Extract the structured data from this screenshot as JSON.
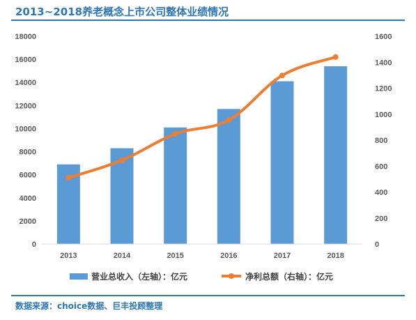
{
  "title": "2013~2018养老概念上市公司整体业绩情况",
  "source": "数据来源：choice数据、巨丰投顾整理",
  "colors": {
    "bar": "#5b9bd5",
    "line": "#ed7d31",
    "accent": "#2e75b6",
    "axis": "#595959"
  },
  "chart_data": {
    "type": "bar",
    "categories": [
      "2013",
      "2014",
      "2015",
      "2016",
      "2017",
      "2018"
    ],
    "series": [
      {
        "name": "营业总收入（左轴）：亿元",
        "type": "bar",
        "axis": "left",
        "values": [
          6900,
          8300,
          10100,
          11700,
          14100,
          15400
        ]
      },
      {
        "name": "净利总额（右轴）：亿元",
        "type": "line",
        "axis": "right",
        "values": [
          510,
          645,
          848,
          955,
          1298,
          1440
        ]
      }
    ],
    "y_left": {
      "ylim": [
        0,
        18000
      ],
      "ticks": [
        "0",
        "2000",
        "4000",
        "6000",
        "8000",
        "10000",
        "12000",
        "14000",
        "16000",
        "18000"
      ]
    },
    "y_right": {
      "ylim": [
        0,
        1600
      ],
      "ticks": [
        "0",
        "200",
        "400",
        "600",
        "800",
        "1000",
        "1200",
        "1400",
        "1600"
      ]
    },
    "legend_position": "bottom",
    "grid": false
  }
}
